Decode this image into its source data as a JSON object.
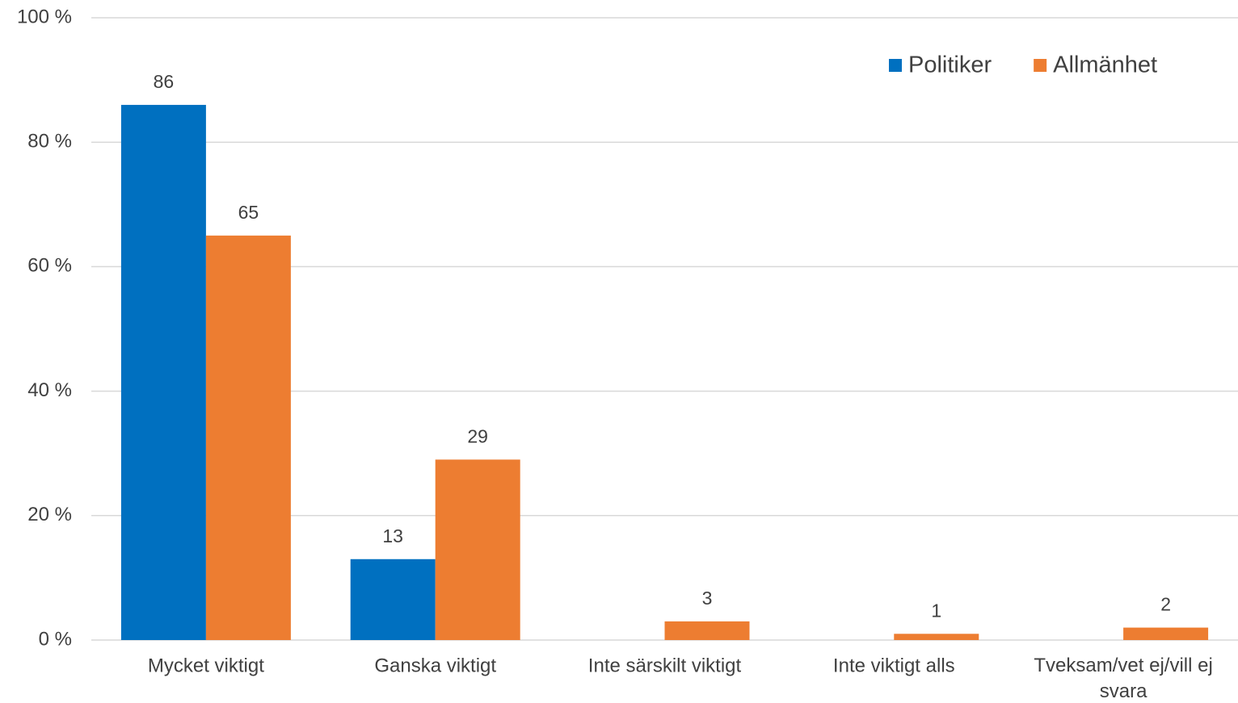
{
  "chart_data": {
    "type": "bar",
    "categories": [
      "Mycket viktigt",
      "Ganska viktigt",
      "Inte särskilt viktigt",
      "Inte viktigt alls",
      "Tveksam/vet ej/vill ej svara"
    ],
    "series": [
      {
        "name": "Politiker",
        "color": "#0070c0",
        "values": [
          86,
          13,
          null,
          null,
          null
        ]
      },
      {
        "name": "Allmänhet",
        "color": "#ed7d31",
        "values": [
          65,
          29,
          3,
          1,
          2
        ]
      }
    ],
    "ylim": [
      0,
      100
    ],
    "yticks": [
      {
        "value": 0,
        "label": "0 %"
      },
      {
        "value": 20,
        "label": "20 %"
      },
      {
        "value": 40,
        "label": "40 %"
      },
      {
        "value": 60,
        "label": "60 %"
      },
      {
        "value": 80,
        "label": "80 %"
      },
      {
        "value": 100,
        "label": "100 %"
      }
    ],
    "grid": true,
    "legend": "top-right"
  }
}
